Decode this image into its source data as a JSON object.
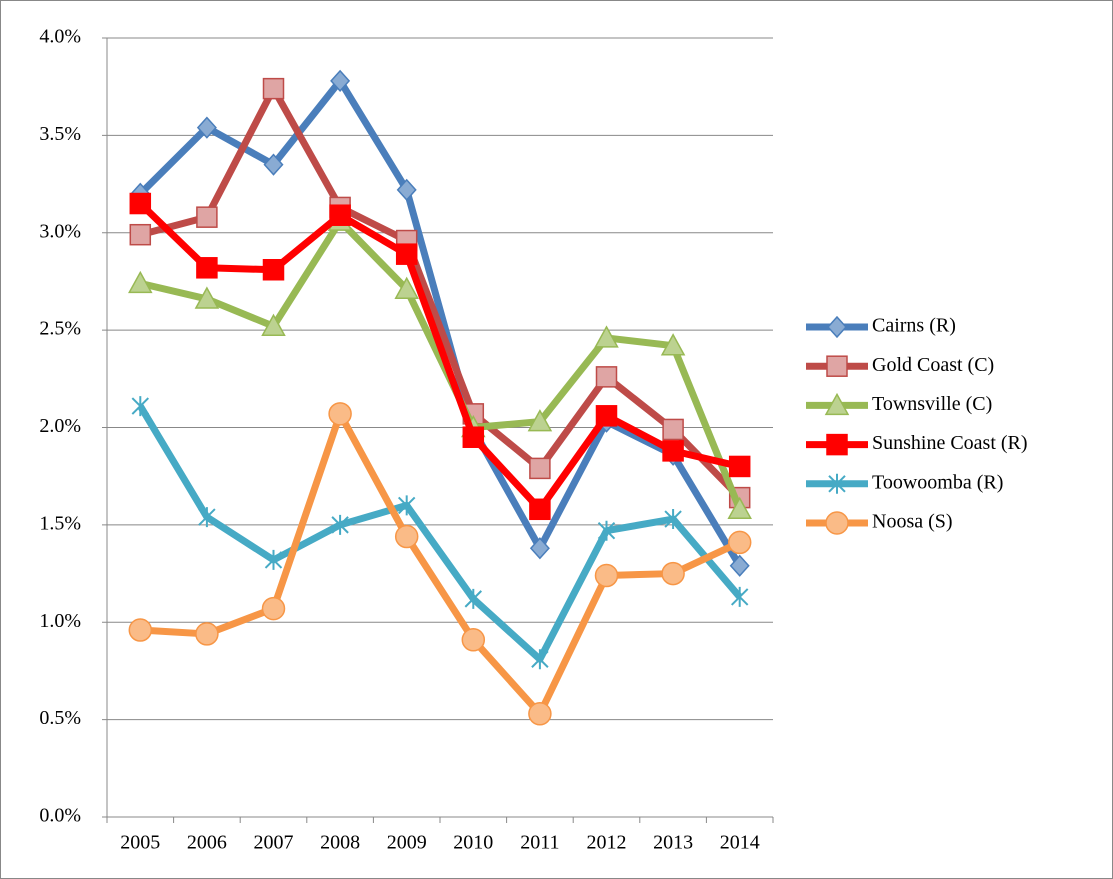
{
  "chart_data": {
    "type": "line",
    "categories": [
      "2005",
      "2006",
      "2007",
      "2008",
      "2009",
      "2010",
      "2011",
      "2012",
      "2013",
      "2014"
    ],
    "series": [
      {
        "name": "Cairns (R)",
        "color": "#4a7ebb",
        "marker": "diamond",
        "values": [
          3.2,
          3.54,
          3.35,
          3.78,
          3.22,
          1.99,
          1.38,
          2.03,
          1.86,
          1.29
        ]
      },
      {
        "name": "Gold Coast (C)",
        "color": "#be4b48",
        "marker": "square",
        "values": [
          2.99,
          3.08,
          3.74,
          3.13,
          2.96,
          2.07,
          1.79,
          2.26,
          1.99,
          1.64
        ]
      },
      {
        "name": "Townsville (C)",
        "color": "#98b954",
        "marker": "triangle",
        "values": [
          2.74,
          2.66,
          2.52,
          3.06,
          2.71,
          2.0,
          2.03,
          2.46,
          2.42,
          1.58
        ]
      },
      {
        "name": "Sunshine Coast (R)",
        "color": "#ff0000",
        "marker": "square",
        "values": [
          3.15,
          2.82,
          2.81,
          3.09,
          2.89,
          1.95,
          1.58,
          2.06,
          1.88,
          1.8
        ]
      },
      {
        "name": "Toowoomba (R)",
        "color": "#46aac5",
        "marker": "star",
        "values": [
          2.11,
          1.54,
          1.32,
          1.5,
          1.6,
          1.12,
          0.81,
          1.47,
          1.53,
          1.13
        ]
      },
      {
        "name": "Noosa (S)",
        "color": "#f79646",
        "marker": "circle",
        "values": [
          0.96,
          0.94,
          1.07,
          2.07,
          1.44,
          0.91,
          0.53,
          1.24,
          1.25,
          1.41
        ]
      }
    ],
    "ylim": [
      0,
      4
    ],
    "yticks": [
      {
        "value": 0,
        "label": "0.0%"
      },
      {
        "value": 0.5,
        "label": "0.5%"
      },
      {
        "value": 1,
        "label": "1.0%"
      },
      {
        "value": 1.5,
        "label": "1.5%"
      },
      {
        "value": 2,
        "label": "2.0%"
      },
      {
        "value": 2.5,
        "label": "2.5%"
      },
      {
        "value": 3,
        "label": "3.0%"
      },
      {
        "value": 3.5,
        "label": "3.5%"
      },
      {
        "value": 4,
        "label": "4.0%"
      }
    ],
    "grid": true,
    "legend": "right"
  }
}
